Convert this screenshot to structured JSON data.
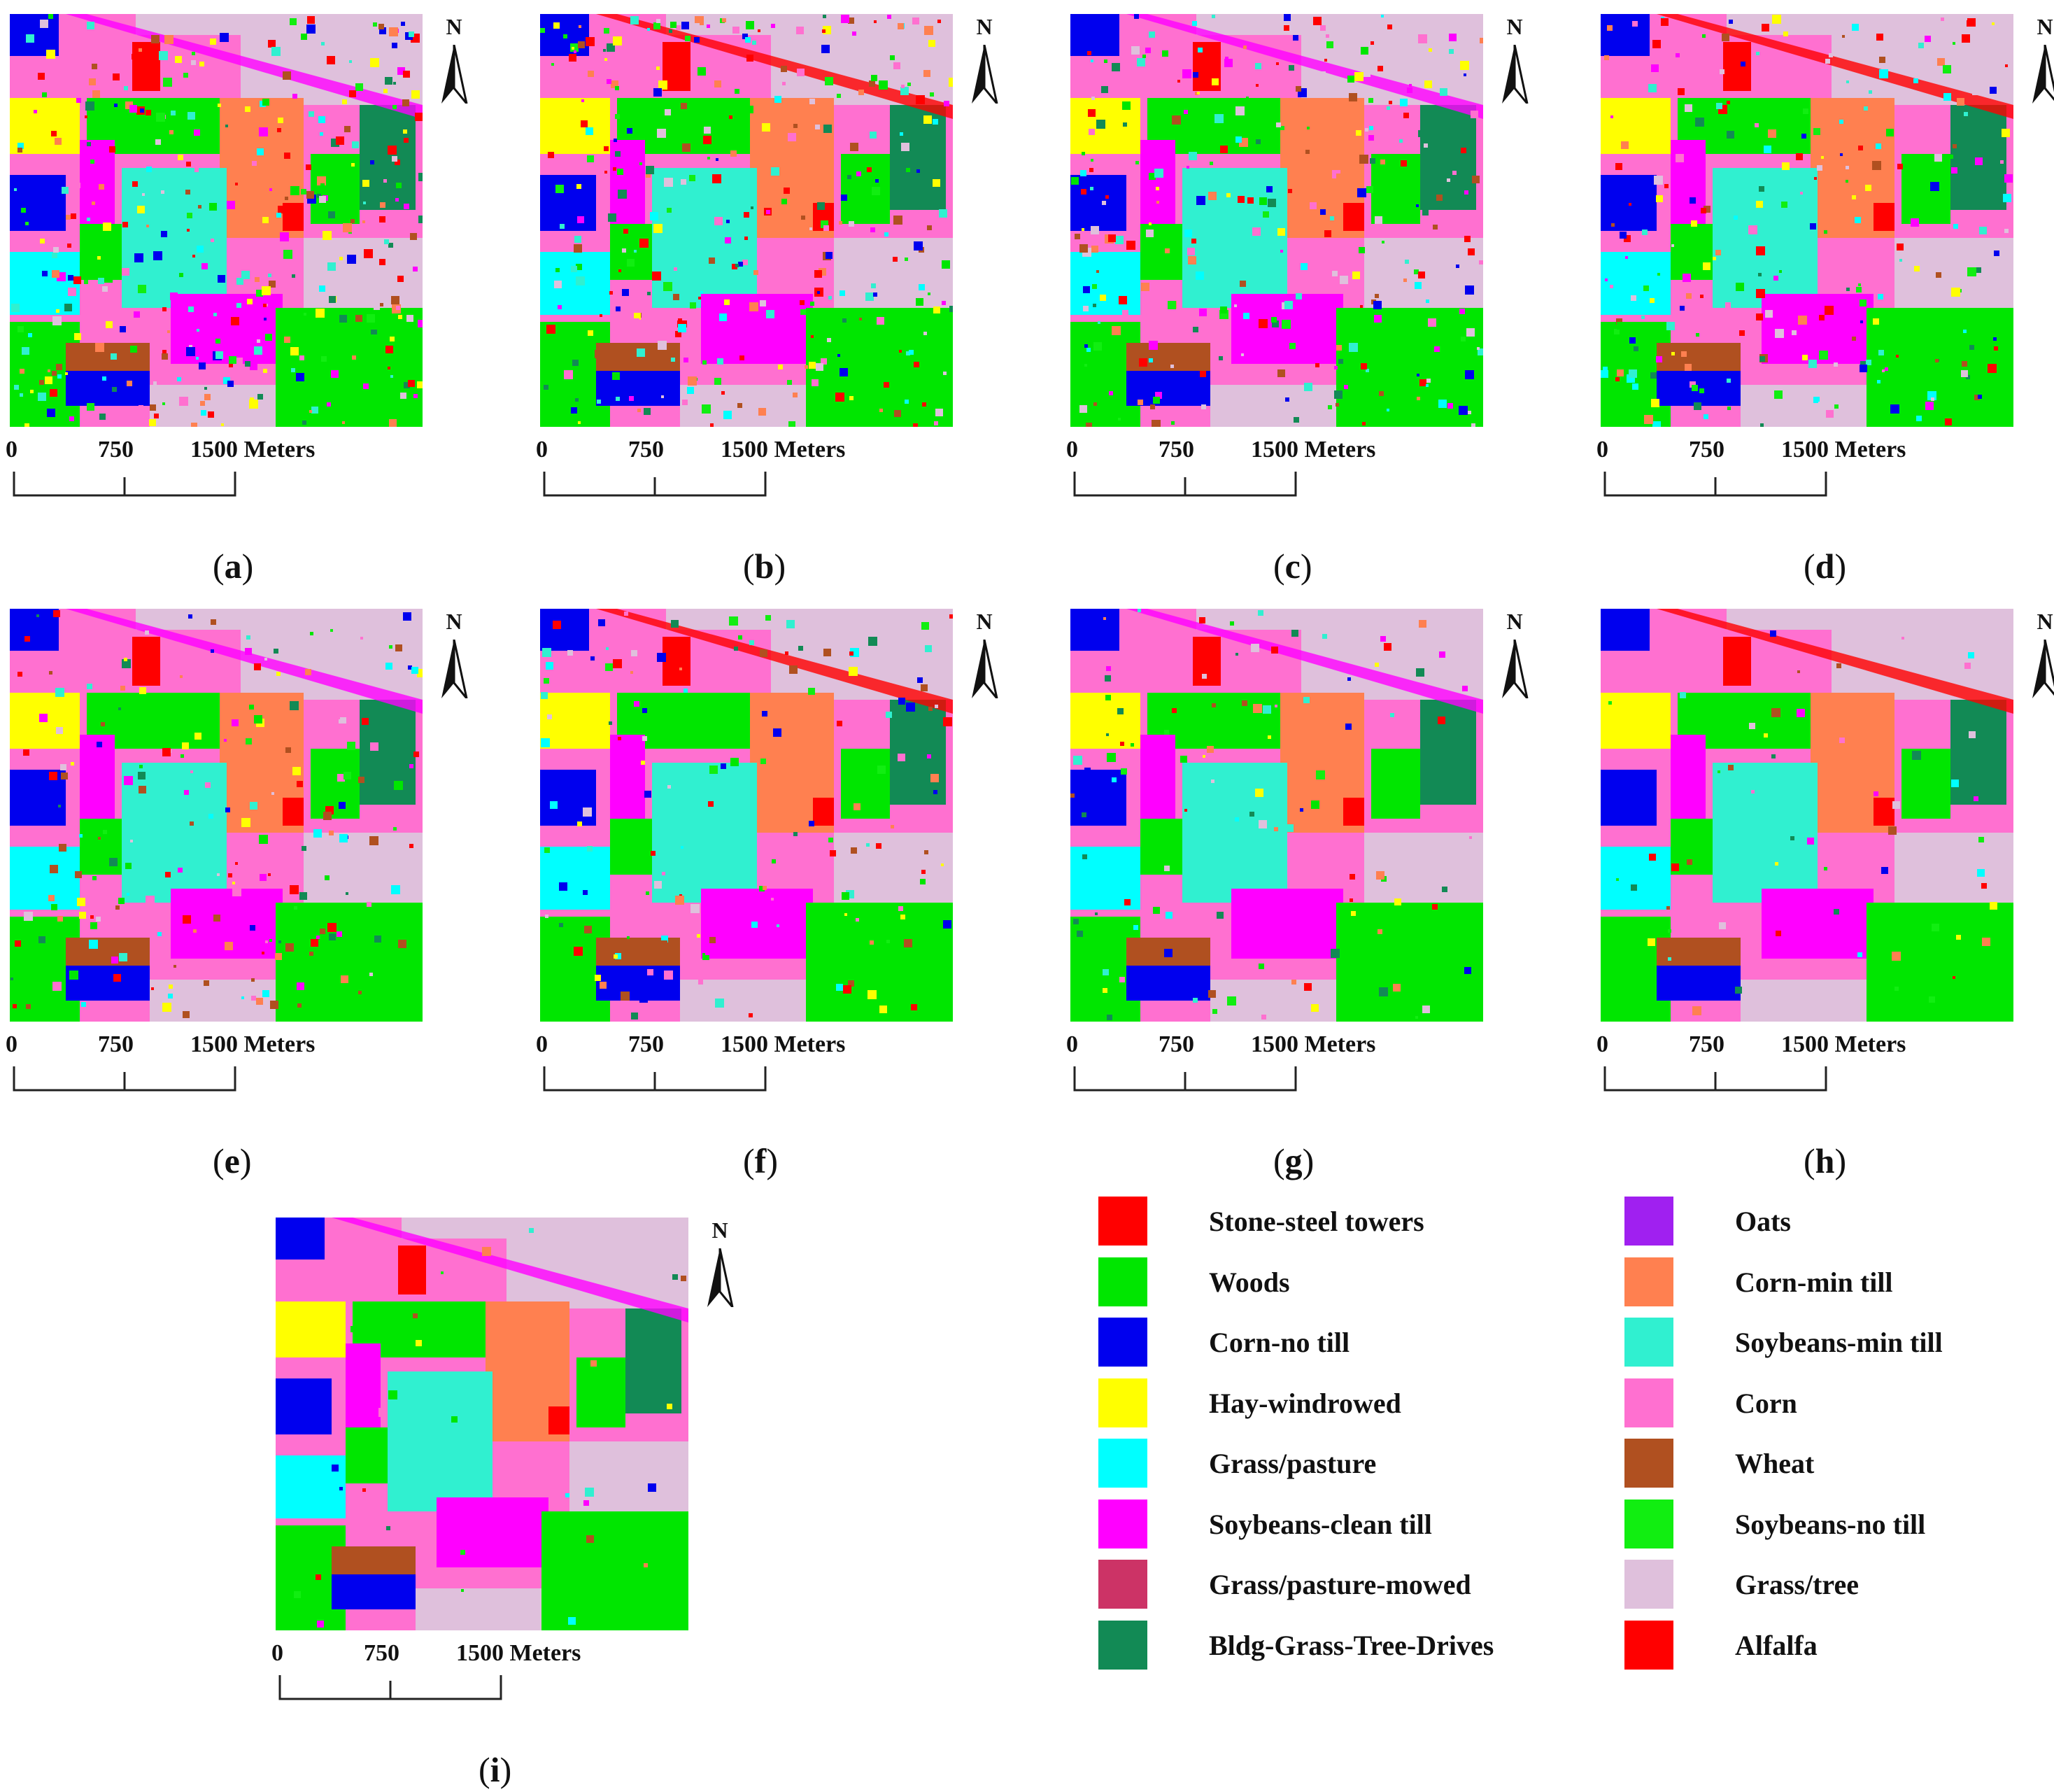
{
  "north_symbol": "N",
  "scale": {
    "zero": "0",
    "mid": "750",
    "end": "1500 Meters"
  },
  "panels": [
    {
      "letter": "a"
    },
    {
      "letter": "b"
    },
    {
      "letter": "c"
    },
    {
      "letter": "d"
    },
    {
      "letter": "e"
    },
    {
      "letter": "f"
    },
    {
      "letter": "g"
    },
    {
      "letter": "h"
    },
    {
      "letter": "i"
    }
  ],
  "legend": {
    "left_column": [
      {
        "label": "Stone-steel towers",
        "color": "#ff0000"
      },
      {
        "label": "Woods",
        "color": "#00e600"
      },
      {
        "label": "Corn-no  till",
        "color": "#0000ee"
      },
      {
        "label": "Hay-windrowed",
        "color": "#ffff00"
      },
      {
        "label": "Grass/pasture",
        "color": "#00ffff"
      },
      {
        "label": "Soybeans-clean till",
        "color": "#ff00ff"
      },
      {
        "label": "Grass/pasture-mowed",
        "color": "#cc3366"
      },
      {
        "label": "Bldg-Grass-Tree-Drives",
        "color": "#128a55"
      }
    ],
    "right_column": [
      {
        "label": "Oats",
        "color": "#a020f0"
      },
      {
        "label": "Corn-min  till",
        "color": "#ff8050"
      },
      {
        "label": "Soybeans-min  till",
        "color": "#30f0d0"
      },
      {
        "label": "Corn",
        "color": "#ff70d0"
      },
      {
        "label": "Wheat",
        "color": "#b05020"
      },
      {
        "label": "Soybeans-no till",
        "color": "#11ee11"
      },
      {
        "label": "Grass/tree",
        "color": "#dfc0dc"
      },
      {
        "label": "Alfalfa",
        "color": "#ff0000"
      }
    ]
  }
}
